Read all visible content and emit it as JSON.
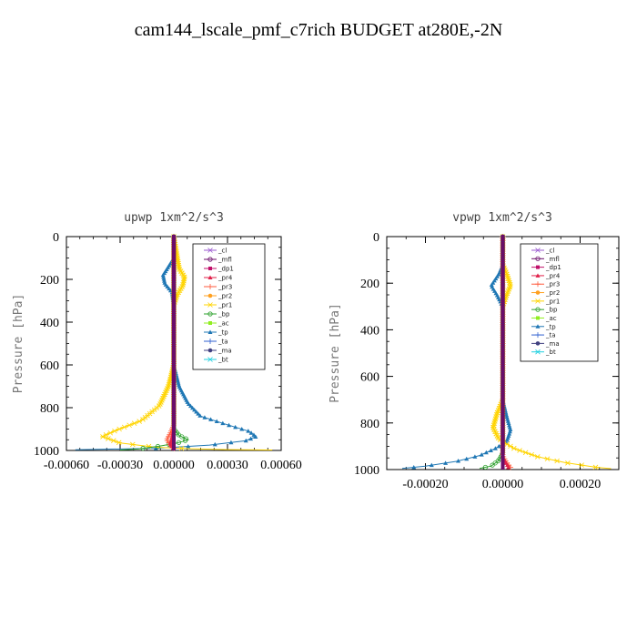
{
  "title": "cam144_lscale_pmf_c7rich  BUDGET at280E,-2N",
  "legend_labels": [
    "_cl",
    "_mfl",
    "_dp1",
    "_pr4",
    "_pr3",
    "_pr2",
    "_pr1",
    "_bp",
    "_ac",
    "_tp",
    "_ta",
    "_ma",
    "_bt"
  ],
  "series_colors": {
    "_cl": "#9b59d0",
    "_mfl": "#6a0d6a",
    "_dp1": "#c0106a",
    "_pr4": "#e0204a",
    "_pr3": "#ff5a3c",
    "_pr2": "#ffa020",
    "_pr1": "#ffd400",
    "_bp": "#2ca02c",
    "_ac": "#90ee20",
    "_tp": "#1f77b4",
    "_ta": "#3060d0",
    "_ma": "#404080",
    "_bt": "#20d0e0"
  },
  "chart_data": [
    {
      "type": "line",
      "title": "upwp   1xm^2/s^3",
      "ylabel": "Pressure [hPa]",
      "xlim": [
        -0.0006,
        0.0006
      ],
      "ylim": [
        1000,
        0
      ],
      "xticks": [
        -0.0006,
        -0.0003,
        0.0,
        0.0003,
        0.0006
      ],
      "xtick_labels": [
        "-0.00060",
        "-0.00030",
        "0.00000",
        "0.00030",
        "0.00060"
      ],
      "yticks": [
        0,
        200,
        400,
        600,
        800,
        1000
      ],
      "ytick_labels": [
        "0",
        "200",
        "400",
        "600",
        "800",
        "1000"
      ],
      "legend_position": "top-right",
      "series": [
        {
          "name": "_tp",
          "points": [
            [
              0,
              0
            ],
            [
              0,
              100
            ],
            [
              -3e-05,
              140
            ],
            [
              -6e-05,
              180
            ],
            [
              -5e-05,
              220
            ],
            [
              -1e-05,
              260
            ],
            [
              0,
              320
            ],
            [
              0,
              600
            ],
            [
              3e-05,
              700
            ],
            [
              8e-05,
              780
            ],
            [
              0.00015,
              840
            ],
            [
              0.0003,
              880
            ],
            [
              0.00042,
              910
            ],
            [
              0.00046,
              935
            ],
            [
              0.0004,
              955
            ],
            [
              0.0002,
              975
            ],
            [
              -0.0001,
              990
            ],
            [
              -0.00055,
              997
            ]
          ]
        },
        {
          "name": "_pr1",
          "points": [
            [
              0,
              0
            ],
            [
              3e-05,
              150
            ],
            [
              6e-05,
              190
            ],
            [
              5e-05,
              230
            ],
            [
              2e-05,
              270
            ],
            [
              0,
              320
            ],
            [
              0,
              600
            ],
            [
              -3e-05,
              700
            ],
            [
              -8e-05,
              790
            ],
            [
              -0.00018,
              860
            ],
            [
              -0.00032,
              905
            ],
            [
              -0.0004,
              935
            ],
            [
              -0.0003,
              965
            ],
            [
              -0.0001,
              985
            ],
            [
              0.0001,
              992
            ],
            [
              0.0003,
              996
            ],
            [
              0.00055,
              998
            ]
          ]
        },
        {
          "name": "_bp",
          "points": [
            [
              0,
              0
            ],
            [
              0,
              900
            ],
            [
              3e-05,
              930
            ],
            [
              8e-05,
              950
            ],
            [
              2e-05,
              965
            ],
            [
              -8e-05,
              980
            ],
            [
              -0.0002,
              993
            ],
            [
              -0.0003,
              998
            ]
          ]
        },
        {
          "name": "_pr3",
          "points": [
            [
              0,
              0
            ],
            [
              0,
              880
            ],
            [
              -2e-05,
              920
            ],
            [
              -4e-05,
              950
            ],
            [
              -2e-05,
              975
            ],
            [
              1e-05,
              995
            ]
          ]
        },
        {
          "name": "_pr4",
          "points": [
            [
              0,
              0
            ],
            [
              0,
              900
            ],
            [
              -1e-05,
              940
            ],
            [
              -2e-05,
              970
            ],
            [
              0,
              995
            ]
          ]
        },
        {
          "name": "_mfl",
          "points": [
            [
              0,
              0
            ],
            [
              0,
              1000
            ]
          ]
        }
      ]
    },
    {
      "type": "line",
      "title": "vpwp   1xm^2/s^3",
      "ylabel": "Pressure [hPa]",
      "xlim": [
        -0.0003,
        0.0003
      ],
      "ylim": [
        1000,
        0
      ],
      "xticks": [
        -0.0002,
        0.0,
        0.0002
      ],
      "xtick_labels": [
        "-0.00020",
        "0.00000",
        "0.00020"
      ],
      "yticks": [
        0,
        200,
        400,
        600,
        800,
        1000
      ],
      "ytick_labels": [
        "0",
        "200",
        "400",
        "600",
        "800",
        "1000"
      ],
      "legend_position": "top-right",
      "series": [
        {
          "name": "_tp",
          "points": [
            [
              0,
              0
            ],
            [
              0,
              120
            ],
            [
              -1e-05,
              160
            ],
            [
              -3e-05,
              210
            ],
            [
              -1.5e-05,
              250
            ],
            [
              0,
              300
            ],
            [
              0,
              700
            ],
            [
              1e-05,
              770
            ],
            [
              2e-05,
              830
            ],
            [
              1e-05,
              880
            ],
            [
              -2e-05,
              910
            ],
            [
              -6e-05,
              940
            ],
            [
              -0.00012,
              965
            ],
            [
              -0.0002,
              985
            ],
            [
              -0.00026,
              995
            ]
          ]
        },
        {
          "name": "_pr1",
          "points": [
            [
              0,
              0
            ],
            [
              0,
              120
            ],
            [
              1e-05,
              160
            ],
            [
              2e-05,
              210
            ],
            [
              1e-05,
              250
            ],
            [
              0,
              300
            ],
            [
              0,
              700
            ],
            [
              -1.5e-05,
              760
            ],
            [
              -2.5e-05,
              820
            ],
            [
              -1e-05,
              870
            ],
            [
              3e-05,
              910
            ],
            [
              9e-05,
              945
            ],
            [
              0.00016,
              970
            ],
            [
              0.00024,
              990
            ],
            [
              0.00028,
              996
            ]
          ]
        },
        {
          "name": "_bp",
          "points": [
            [
              0,
              0
            ],
            [
              0,
              930
            ],
            [
              -1e-05,
              960
            ],
            [
              -3e-05,
              985
            ],
            [
              -6e-05,
              995
            ]
          ]
        },
        {
          "name": "_pr3",
          "points": [
            [
              0,
              0
            ],
            [
              0,
              940
            ],
            [
              1e-05,
              970
            ],
            [
              2e-05,
              990
            ]
          ]
        },
        {
          "name": "_pr4",
          "points": [
            [
              0,
              0
            ],
            [
              0,
              950
            ],
            [
              1e-05,
              975
            ],
            [
              1.5e-05,
              992
            ]
          ]
        },
        {
          "name": "_mfl",
          "points": [
            [
              0,
              0
            ],
            [
              0,
              1000
            ]
          ]
        }
      ]
    }
  ]
}
